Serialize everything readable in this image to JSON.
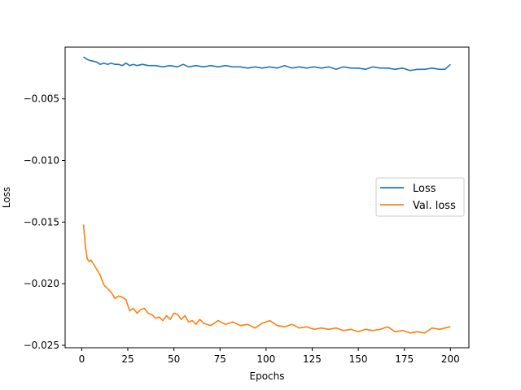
{
  "chart_data": {
    "type": "line",
    "title": "",
    "xlabel": "Epochs",
    "ylabel": "Loss",
    "xlim": [
      -9,
      210
    ],
    "ylim": [
      -0.0252,
      -0.0008
    ],
    "xticks": [
      0,
      25,
      50,
      75,
      100,
      125,
      150,
      175,
      200
    ],
    "yticks": [
      -0.005,
      -0.01,
      -0.015,
      -0.02,
      -0.025
    ],
    "xtick_labels": [
      "0",
      "25",
      "50",
      "75",
      "100",
      "125",
      "150",
      "175",
      "200"
    ],
    "ytick_labels": [
      "−0.005",
      "−0.010",
      "−0.015",
      "−0.020",
      "−0.025"
    ],
    "grid": false,
    "legend_position": "center-right",
    "series": [
      {
        "name": "Loss",
        "color": "#1f77b4",
        "x": [
          1,
          3,
          5,
          8,
          10,
          12,
          14,
          16,
          18,
          20,
          22,
          24,
          26,
          28,
          30,
          33,
          36,
          40,
          44,
          48,
          52,
          55,
          58,
          62,
          66,
          70,
          74,
          78,
          82,
          86,
          90,
          94,
          98,
          102,
          106,
          110,
          114,
          118,
          122,
          126,
          130,
          134,
          138,
          142,
          146,
          150,
          154,
          158,
          162,
          166,
          170,
          174,
          178,
          182,
          186,
          190,
          194,
          197,
          200
        ],
        "y": [
          -0.0016,
          -0.0018,
          -0.0019,
          -0.002,
          -0.0022,
          -0.0021,
          -0.0022,
          -0.0021,
          -0.0022,
          -0.0022,
          -0.0023,
          -0.0021,
          -0.0023,
          -0.0022,
          -0.0023,
          -0.0022,
          -0.0023,
          -0.0023,
          -0.0024,
          -0.0023,
          -0.0024,
          -0.0022,
          -0.0024,
          -0.0023,
          -0.0024,
          -0.0023,
          -0.0024,
          -0.0023,
          -0.0024,
          -0.0024,
          -0.0025,
          -0.0024,
          -0.0025,
          -0.0024,
          -0.0025,
          -0.0023,
          -0.0025,
          -0.0024,
          -0.0025,
          -0.0024,
          -0.0025,
          -0.0024,
          -0.0026,
          -0.0024,
          -0.0025,
          -0.0025,
          -0.0026,
          -0.0024,
          -0.0025,
          -0.0025,
          -0.0026,
          -0.0025,
          -0.0027,
          -0.0026,
          -0.0026,
          -0.0025,
          -0.0026,
          -0.0026,
          -0.0022
        ]
      },
      {
        "name": "Val. loss",
        "color": "#ff7f0e",
        "x": [
          1,
          2,
          3,
          4,
          5,
          6,
          8,
          10,
          12,
          14,
          16,
          18,
          20,
          22,
          24,
          26,
          28,
          30,
          32,
          34,
          36,
          38,
          40,
          42,
          44,
          46,
          48,
          50,
          52,
          54,
          56,
          58,
          60,
          62,
          64,
          66,
          68,
          70,
          74,
          78,
          82,
          86,
          90,
          94,
          98,
          102,
          106,
          110,
          114,
          118,
          122,
          126,
          130,
          134,
          138,
          142,
          146,
          150,
          154,
          158,
          162,
          166,
          170,
          174,
          178,
          182,
          186,
          190,
          194,
          197,
          200
        ],
        "y": [
          -0.0152,
          -0.017,
          -0.018,
          -0.0182,
          -0.0181,
          -0.0183,
          -0.0188,
          -0.0193,
          -0.0201,
          -0.0204,
          -0.0207,
          -0.0212,
          -0.021,
          -0.0211,
          -0.0213,
          -0.0222,
          -0.022,
          -0.0224,
          -0.0221,
          -0.022,
          -0.0224,
          -0.0225,
          -0.0228,
          -0.0227,
          -0.023,
          -0.0226,
          -0.0229,
          -0.0224,
          -0.0225,
          -0.0229,
          -0.0226,
          -0.0231,
          -0.023,
          -0.0233,
          -0.0229,
          -0.0232,
          -0.0233,
          -0.0234,
          -0.023,
          -0.0233,
          -0.0231,
          -0.0234,
          -0.0233,
          -0.0236,
          -0.0232,
          -0.023,
          -0.0234,
          -0.0235,
          -0.0233,
          -0.0236,
          -0.0235,
          -0.0237,
          -0.0236,
          -0.0237,
          -0.0236,
          -0.0238,
          -0.0237,
          -0.0239,
          -0.0237,
          -0.0238,
          -0.0237,
          -0.0235,
          -0.0239,
          -0.0238,
          -0.024,
          -0.0239,
          -0.024,
          -0.0236,
          -0.0237,
          -0.0236,
          -0.0235
        ]
      }
    ]
  }
}
